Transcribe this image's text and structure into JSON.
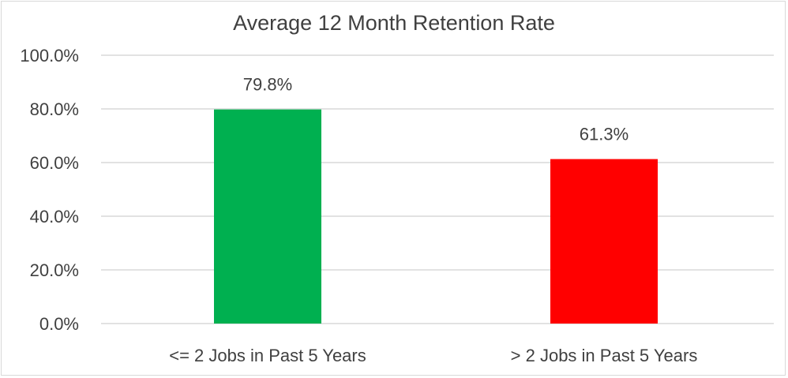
{
  "chart_data": {
    "type": "bar",
    "title": "Average 12 Month Retention Rate",
    "categories": [
      "<= 2 Jobs in Past 5 Years",
      "> 2 Jobs in Past 5 Years"
    ],
    "values": [
      79.8,
      61.3
    ],
    "data_labels": [
      "79.8%",
      "61.3%"
    ],
    "colors": [
      "#00b050",
      "#ff0000"
    ],
    "y_ticks": [
      0,
      20,
      40,
      60,
      80,
      100
    ],
    "y_tick_labels": [
      "0.0%",
      "20.0%",
      "40.0%",
      "60.0%",
      "80.0%",
      "100.0%"
    ],
    "ylim": [
      0,
      100
    ],
    "grid": true,
    "legend": "none",
    "xlabel": "",
    "ylabel": ""
  }
}
